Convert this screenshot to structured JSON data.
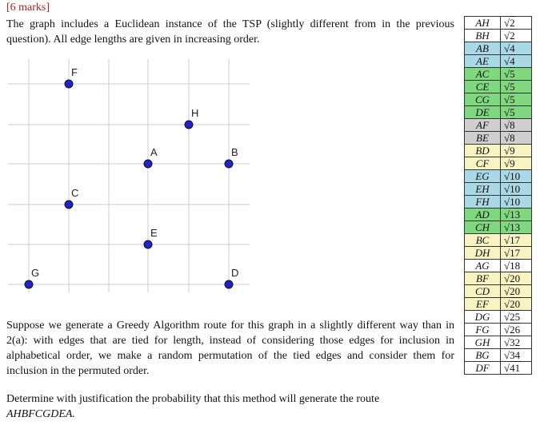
{
  "marks": "[6 marks]",
  "intro": "The graph includes a Euclidean instance of the TSP (slightly different from in the previous question). All edge lengths are given in increasing order.",
  "graph": {
    "vertices": [
      {
        "name": "F",
        "col": 1,
        "row": 0
      },
      {
        "name": "H",
        "col": 4,
        "row": 1
      },
      {
        "name": "A",
        "col": 3,
        "row": 2
      },
      {
        "name": "B",
        "col": 5,
        "row": 2
      },
      {
        "name": "C",
        "col": 1,
        "row": 3
      },
      {
        "name": "E",
        "col": 3,
        "row": 4
      },
      {
        "name": "G",
        "col": 0,
        "row": 5
      },
      {
        "name": "D",
        "col": 5,
        "row": 5
      }
    ]
  },
  "edges": [
    {
      "edge": "AH",
      "len": "2",
      "color": "#ffffff"
    },
    {
      "edge": "BH",
      "len": "2",
      "color": "#ffffff"
    },
    {
      "edge": "AB",
      "len": "4",
      "color": "#a9d8e6"
    },
    {
      "edge": "AE",
      "len": "4",
      "color": "#a9d8e6"
    },
    {
      "edge": "AC",
      "len": "5",
      "color": "#7ed87e"
    },
    {
      "edge": "CE",
      "len": "5",
      "color": "#7ed87e"
    },
    {
      "edge": "CG",
      "len": "5",
      "color": "#7ed87e"
    },
    {
      "edge": "DE",
      "len": "5",
      "color": "#7ed87e"
    },
    {
      "edge": "AF",
      "len": "8",
      "color": "#cfcfcf"
    },
    {
      "edge": "BE",
      "len": "8",
      "color": "#cfcfcf"
    },
    {
      "edge": "BD",
      "len": "9",
      "color": "#f7f4c2"
    },
    {
      "edge": "CF",
      "len": "9",
      "color": "#f7f4c2"
    },
    {
      "edge": "EG",
      "len": "10",
      "color": "#a9d8e6"
    },
    {
      "edge": "EH",
      "len": "10",
      "color": "#a9d8e6"
    },
    {
      "edge": "FH",
      "len": "10",
      "color": "#a9d8e6"
    },
    {
      "edge": "AD",
      "len": "13",
      "color": "#7ed87e"
    },
    {
      "edge": "CH",
      "len": "13",
      "color": "#7ed87e"
    },
    {
      "edge": "BC",
      "len": "17",
      "color": "#f7f4c2"
    },
    {
      "edge": "DH",
      "len": "17",
      "color": "#f7f4c2"
    },
    {
      "edge": "AG",
      "len": "18",
      "color": "#ffffff"
    },
    {
      "edge": "BF",
      "len": "20",
      "color": "#f7f4c2"
    },
    {
      "edge": "CD",
      "len": "20",
      "color": "#f7f4c2"
    },
    {
      "edge": "EF",
      "len": "20",
      "color": "#f7f4c2"
    },
    {
      "edge": "DG",
      "len": "25",
      "color": "#ffffff"
    },
    {
      "edge": "FG",
      "len": "26",
      "color": "#ffffff"
    },
    {
      "edge": "GH",
      "len": "32",
      "color": "#ffffff"
    },
    {
      "edge": "BG",
      "len": "34",
      "color": "#ffffff"
    },
    {
      "edge": "DF",
      "len": "41",
      "color": "#ffffff"
    }
  ],
  "para1": "Suppose we generate a Greedy Algorithm route for this graph in a slightly different way than in 2(a): with edges that are tied for length, instead of considering those edges for inclusion in alphabetical order, we make a random permutation of the tied edges and consider them for inclusion in the permuted order.",
  "para2": "Determine with justification the probability that this method will generate the route",
  "route": "AHBFCGDEA."
}
